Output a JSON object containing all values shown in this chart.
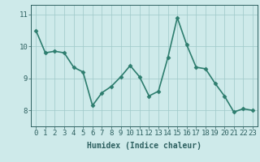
{
  "x": [
    0,
    1,
    2,
    3,
    4,
    5,
    6,
    7,
    8,
    9,
    10,
    11,
    12,
    13,
    14,
    15,
    16,
    17,
    18,
    19,
    20,
    21,
    22,
    23
  ],
  "y": [
    10.5,
    9.8,
    9.85,
    9.8,
    9.35,
    9.2,
    8.15,
    8.55,
    8.75,
    9.05,
    9.4,
    9.05,
    8.45,
    8.6,
    9.65,
    10.9,
    10.05,
    9.35,
    9.3,
    8.85,
    8.45,
    7.95,
    8.05,
    8.0
  ],
  "line_color": "#2d7d6e",
  "marker": "D",
  "marker_size": 2.5,
  "bg_color": "#ceeaea",
  "grid_color": "#9ec8c8",
  "ylim": [
    7.5,
    11.3
  ],
  "xlim": [
    -0.5,
    23.5
  ],
  "yticks": [
    8,
    9,
    10,
    11
  ],
  "xticks": [
    0,
    1,
    2,
    3,
    4,
    5,
    6,
    7,
    8,
    9,
    10,
    11,
    12,
    13,
    14,
    15,
    16,
    17,
    18,
    19,
    20,
    21,
    22,
    23
  ],
  "xlabel": "Humidex (Indice chaleur)",
  "xlabel_fontsize": 7,
  "tick_fontsize": 6.5,
  "tick_color": "#2d6060",
  "axis_color": "#2d6060",
  "line_width": 1.2
}
